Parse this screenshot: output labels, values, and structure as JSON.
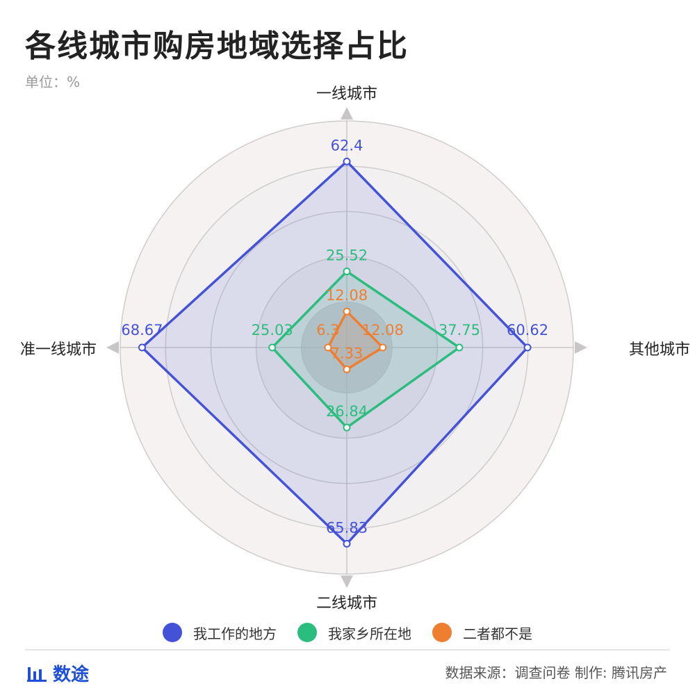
{
  "header": {
    "title": "各线城市购房地域选择占比",
    "unit": "单位：%"
  },
  "chart_data": {
    "type": "radar",
    "indicators": [
      "一线城市",
      "其他城市",
      "二线城市",
      "准一线城市"
    ],
    "series": [
      {
        "name": "我工作的地方",
        "color": "#4452d8",
        "values": [
          62.4,
          60.62,
          65.83,
          68.67
        ]
      },
      {
        "name": "我家乡所在地",
        "color": "#2bbd7e",
        "values": [
          25.52,
          37.75,
          26.84,
          25.03
        ]
      },
      {
        "name": "二者都不是",
        "color": "#ee7e30",
        "values": [
          12.08,
          12.08,
          7.33,
          6.3
        ]
      }
    ],
    "value_labels": [
      [
        "62.4",
        "60.62",
        "65.83",
        "68.67"
      ],
      [
        "25.52",
        "37.75",
        "26.84",
        "25.03"
      ],
      [
        "12.08",
        "12.08",
        "7.33",
        "6.3"
      ]
    ],
    "rings": 5,
    "grid": true,
    "legend_position": "bottom"
  },
  "footer": {
    "brand": "数途",
    "source": "数据来源：调查问卷  制作: 腾讯房产"
  }
}
